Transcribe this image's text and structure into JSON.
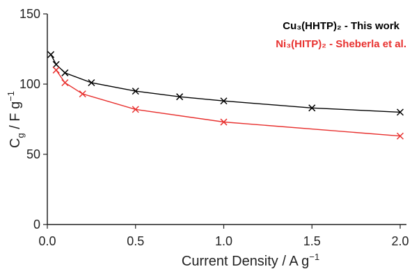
{
  "chart_data": {
    "type": "line",
    "xlabel": "Current Density / A g",
    "xlabel_sup": "−1",
    "ylabel": "C",
    "ylabel_sub": "g",
    "ylabel_rest": " / F g",
    "ylabel_sup": "−1",
    "xlim": [
      0,
      2.0
    ],
    "ylim": [
      0,
      150
    ],
    "x_ticks": [
      0.0,
      0.5,
      1.0,
      1.5,
      2.0
    ],
    "x_tick_labels": [
      "0.0",
      "0.5",
      "1.0",
      "1.5",
      "2.0"
    ],
    "y_ticks": [
      0,
      50,
      100,
      150
    ],
    "y_tick_labels": [
      "0",
      "50",
      "100",
      "150"
    ],
    "grid": false,
    "legend_position": "top-right",
    "series": [
      {
        "name": "Cu₃(HHTP)₂ - This work",
        "color": "#000000",
        "marker": "x",
        "x": [
          0.02,
          0.05,
          0.1,
          0.25,
          0.5,
          0.75,
          1.0,
          1.5,
          2.0
        ],
        "y": [
          121,
          114,
          108,
          101,
          95,
          91,
          88,
          83,
          80
        ]
      },
      {
        "name": "Ni₃(HITP)₂ - Sheberla et al.",
        "color": "#e8312f",
        "marker": "x",
        "x": [
          0.05,
          0.1,
          0.2,
          0.5,
          1.0,
          2.0
        ],
        "y": [
          110,
          101,
          93,
          82,
          73,
          63
        ]
      }
    ]
  }
}
